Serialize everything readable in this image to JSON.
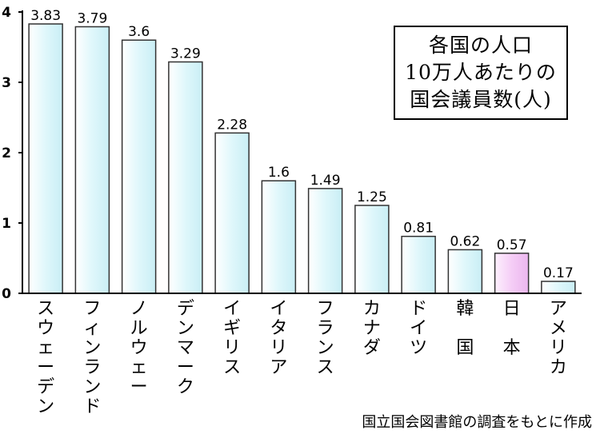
{
  "chart_data": {
    "type": "bar",
    "categories": [
      "スウェーデン",
      "フィンランド",
      "ノルウェー",
      "デンマーク",
      "イギリス",
      "イタリア",
      "フランス",
      "カナダ",
      "ドイツ",
      "韓国",
      "日本",
      "アメリカ"
    ],
    "category_labels": [
      "スウェーデン",
      "フィンランド",
      "ノルウェー",
      "デンマーク",
      "イギリス",
      "イタリア",
      "フランス",
      "カナダ",
      "ドイツ",
      "韓　国",
      "日　本",
      "アメリカ"
    ],
    "values": [
      3.83,
      3.79,
      3.6,
      3.29,
      2.28,
      1.6,
      1.49,
      1.25,
      0.81,
      0.62,
      0.57,
      0.17
    ],
    "value_labels": [
      "3.83",
      "3.79",
      "3.6",
      "3.29",
      "2.28",
      "1.6",
      "1.49",
      "1.25",
      "0.81",
      "0.62",
      "0.57",
      "0.17"
    ],
    "ylim": [
      0,
      4
    ],
    "yticks": [
      "0",
      "1",
      "2",
      "3",
      "4"
    ],
    "title_lines": [
      "各国の人口",
      "10万人あたりの",
      "国会議員数(人)"
    ],
    "highlight_category": "日本",
    "colors": {
      "bar_fill": "#e8fafd",
      "bar_highlight": "#f7d4f8",
      "bar_stroke": "#333333",
      "axis": "#000000"
    },
    "grid": false,
    "legend": "top-right"
  },
  "source_note": "国立国会図書館の調査をもとに作成"
}
